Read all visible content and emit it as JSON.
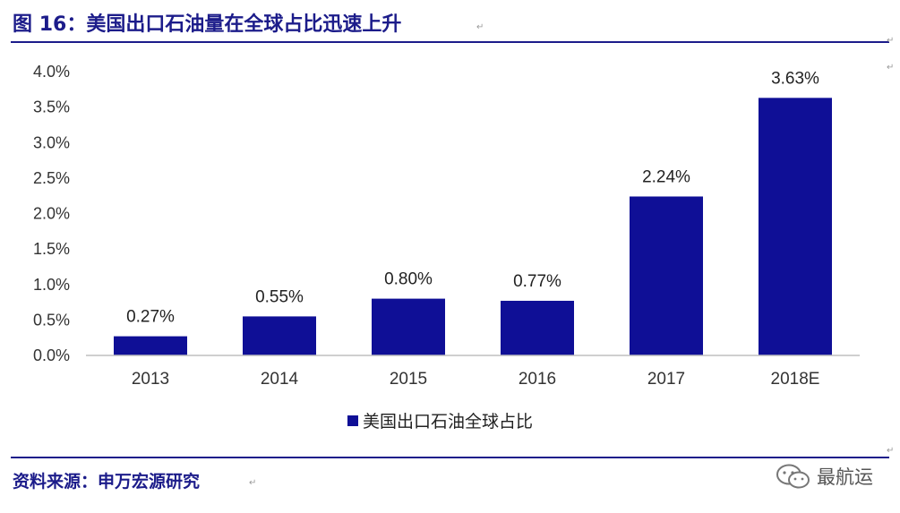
{
  "figure": {
    "label": "图",
    "number": "16",
    "separator": "：",
    "title": "美国出口石油量在全球占比迅速上升"
  },
  "source": "资料来源：申万宏源研究",
  "watermark": {
    "text": "最航运",
    "icon": "wechat-icon"
  },
  "colors": {
    "bar": "#0f0f96",
    "rule": "#1c1c8a",
    "axis": "#bfbfbf"
  },
  "chart_data": {
    "type": "bar",
    "categories": [
      "2013",
      "2014",
      "2015",
      "2016",
      "2017",
      "2018E"
    ],
    "series": [
      {
        "name": "美国出口石油全球占比",
        "values": [
          0.27,
          0.55,
          0.8,
          0.77,
          2.24,
          3.63
        ]
      }
    ],
    "data_labels": [
      "0.27%",
      "0.55%",
      "0.80%",
      "0.77%",
      "2.24%",
      "3.63%"
    ],
    "y_ticks": [
      "0.0%",
      "0.5%",
      "1.0%",
      "1.5%",
      "2.0%",
      "2.5%",
      "3.0%",
      "3.5%",
      "4.0%"
    ],
    "ylim": [
      0,
      4.0
    ],
    "unit": "%",
    "grid": false,
    "legend": "bottom"
  }
}
